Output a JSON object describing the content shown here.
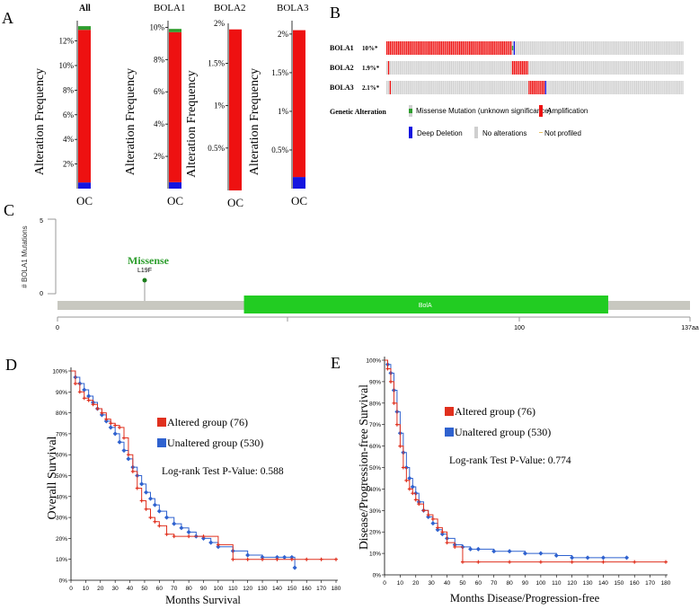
{
  "panels": {
    "A": "A",
    "B": "B",
    "C": "C",
    "D": "D",
    "E": "E"
  },
  "colors": {
    "amplification": "#ee1111",
    "deep_deletion": "#1414e0",
    "missense": "#2e9e2e",
    "no_alteration": "#cfcfcf",
    "altered": "#e0301e",
    "unaltered": "#2f62cf",
    "domain": "#22cc22",
    "backbone": "#c8c8c0"
  },
  "chart_data": [
    {
      "id": "A",
      "type": "bar",
      "ylabel": "Alteration Frequency",
      "charts": [
        {
          "title": "All",
          "category": "OC",
          "ylim": [
            0,
            13.5
          ],
          "ticks": [
            2,
            4,
            6,
            8,
            10,
            12
          ],
          "tick_labels": [
            "2%",
            "4%",
            "6%",
            "8%",
            "10%",
            "12%"
          ],
          "segments": [
            {
              "name": "Deep Deletion",
              "value": 0.5
            },
            {
              "name": "Amplification",
              "value": 12.4
            },
            {
              "name": "Missense Mutation",
              "value": 0.3
            }
          ]
        },
        {
          "title": "BOLA1",
          "category": "OC",
          "ylim": [
            0,
            10.3
          ],
          "ticks": [
            2,
            4,
            6,
            8,
            10
          ],
          "tick_labels": [
            "2%",
            "4%",
            "6%",
            "8%",
            "10%"
          ],
          "segments": [
            {
              "name": "Deep Deletion",
              "value": 0.4
            },
            {
              "name": "Amplification",
              "value": 9.3
            },
            {
              "name": "Missense Mutation",
              "value": 0.2
            }
          ]
        },
        {
          "title": "BOLA2",
          "category": "OC",
          "ylim": [
            0,
            1.95
          ],
          "ticks": [
            0.5,
            1,
            1.5
          ],
          "tick_labels": [
            "0.5%",
            "1%",
            "1.5%"
          ],
          "top_label": "2%",
          "segments": [
            {
              "name": "Amplification",
              "value": 1.9
            }
          ]
        },
        {
          "title": "BOLA3",
          "category": "OC",
          "ylim": [
            0,
            2.15
          ],
          "ticks": [
            0.5,
            1,
            1.5,
            2
          ],
          "tick_labels": [
            "0.5%",
            "1%",
            "1.5%",
            "2%"
          ],
          "segments": [
            {
              "name": "Deep Deletion",
              "value": 0.15
            },
            {
              "name": "Amplification",
              "value": 1.9
            }
          ]
        }
      ]
    },
    {
      "id": "B",
      "type": "oncoprint",
      "n_samples": 180,
      "rows": [
        {
          "gene": "BOLA1",
          "pct": "10%*",
          "amp": [
            [
              0,
              76
            ]
          ],
          "del": [
            [
              77,
              78
            ]
          ],
          "mut": [
            [
              76,
              77
            ]
          ]
        },
        {
          "gene": "BOLA2",
          "pct": "1.9%*",
          "amp": [
            [
              1,
              2
            ],
            [
              76,
              86
            ]
          ],
          "del": [],
          "mut": []
        },
        {
          "gene": "BOLA3",
          "pct": "2.1%*",
          "amp": [
            [
              2,
              3
            ],
            [
              86,
              96
            ]
          ],
          "del": [
            [
              96,
              97
            ]
          ],
          "mut": []
        }
      ],
      "legend_title": "Genetic Alteration",
      "legend": [
        {
          "key": "missense",
          "label": "Missense Mutation (unknown significance)"
        },
        {
          "key": "amplification",
          "label": "Amplification"
        },
        {
          "key": "deep_deletion",
          "label": "Deep Deletion"
        },
        {
          "key": "no_alteration",
          "label": "No alterations"
        },
        {
          "key": "not_profiled",
          "label": "Not profiled"
        }
      ]
    },
    {
      "id": "C",
      "type": "lollipop",
      "ylabel": "# BOLA1 Mutations",
      "ylim": [
        0,
        5
      ],
      "y_ticks": [
        "5",
        "0"
      ],
      "protein_length": 137,
      "x_ticks": [
        "0",
        "100",
        "137aa"
      ],
      "x_tick_values": [
        0,
        100,
        137
      ],
      "domain": {
        "name": "BolA",
        "start": 40,
        "end": 115
      },
      "mutations": [
        {
          "pos": 19,
          "count": 1,
          "label": "L19F",
          "type": "Missense"
        }
      ]
    },
    {
      "id": "D",
      "type": "line",
      "xlabel": "Months Survival",
      "ylabel": "Overall Survival",
      "xlim": [
        0,
        180
      ],
      "ylim": [
        0,
        100
      ],
      "x_ticks": [
        "0",
        "10",
        "20",
        "30",
        "40",
        "50",
        "60",
        "70",
        "80",
        "90",
        "100",
        "110",
        "120",
        "130",
        "140",
        "150",
        "160",
        "170",
        "180"
      ],
      "y_ticks": [
        "0%",
        "10%",
        "20%",
        "30%",
        "40%",
        "50%",
        "60%",
        "70%",
        "80%",
        "90%",
        "100%"
      ],
      "legend": [
        "Altered group (76)",
        "Unaltered group (530)"
      ],
      "annotation": "Log-rank Test P-Value:  0.588",
      "series": [
        {
          "name": "Altered group (76)",
          "x": [
            0,
            3,
            6,
            9,
            12,
            15,
            18,
            21,
            24,
            27,
            30,
            33,
            36,
            39,
            42,
            45,
            48,
            51,
            54,
            57,
            60,
            65,
            70,
            80,
            90,
            100,
            110,
            120,
            130,
            140,
            150,
            160,
            170,
            180
          ],
          "y": [
            100,
            94,
            90,
            87,
            86,
            84,
            82,
            80,
            77,
            75,
            74,
            73,
            68,
            60,
            52,
            44,
            38,
            34,
            30,
            28,
            26,
            22,
            21,
            21,
            21,
            17,
            10,
            10,
            10,
            10,
            10,
            10,
            10,
            10
          ]
        },
        {
          "name": "Unaltered group (530)",
          "x": [
            0,
            3,
            6,
            9,
            12,
            15,
            18,
            21,
            24,
            27,
            30,
            33,
            36,
            39,
            42,
            45,
            48,
            51,
            54,
            57,
            60,
            65,
            70,
            75,
            80,
            85,
            90,
            95,
            100,
            110,
            120,
            130,
            140,
            145,
            150,
            152
          ],
          "y": [
            100,
            97,
            94,
            91,
            88,
            85,
            82,
            79,
            76,
            73,
            70,
            66,
            62,
            58,
            54,
            50,
            46,
            42,
            39,
            36,
            33,
            30,
            27,
            25,
            23,
            21,
            20,
            18,
            16,
            14,
            12,
            11,
            11,
            11,
            11,
            6
          ]
        }
      ]
    },
    {
      "id": "E",
      "type": "line",
      "xlabel": "Months Disease/Progression-free",
      "ylabel": "Disease/Progression-free Survival",
      "xlim": [
        0,
        180
      ],
      "ylim": [
        0,
        100
      ],
      "x_ticks": [
        "0",
        "10",
        "20",
        "30",
        "40",
        "50",
        "60",
        "70",
        "80",
        "90",
        "100",
        "110",
        "120",
        "130",
        "140",
        "150",
        "160",
        "170",
        "180"
      ],
      "y_ticks": [
        "0%",
        "10%",
        "20%",
        "30%",
        "40%",
        "50%",
        "60%",
        "70%",
        "80%",
        "90%",
        "100%"
      ],
      "legend": [
        "Altered group (76)",
        "Unaltered group (530)"
      ],
      "annotation": "Log-rank Test P-Value:  0.774",
      "series": [
        {
          "name": "Altered group (76)",
          "x": [
            0,
            2,
            4,
            6,
            8,
            10,
            12,
            14,
            16,
            18,
            20,
            22,
            25,
            28,
            31,
            34,
            37,
            40,
            45,
            50,
            60,
            80,
            100,
            120,
            140,
            160,
            180
          ],
          "y": [
            100,
            96,
            90,
            80,
            70,
            60,
            50,
            44,
            40,
            38,
            35,
            33,
            30,
            28,
            26,
            22,
            20,
            15,
            13,
            6,
            6,
            6,
            6,
            6,
            6,
            6,
            6
          ]
        },
        {
          "name": "Unaltered group (530)",
          "x": [
            0,
            2,
            4,
            6,
            8,
            10,
            12,
            14,
            16,
            18,
            20,
            22,
            25,
            28,
            31,
            34,
            37,
            40,
            45,
            50,
            55,
            60,
            70,
            80,
            90,
            100,
            110,
            120,
            130,
            140,
            155
          ],
          "y": [
            100,
            98,
            94,
            86,
            76,
            66,
            57,
            50,
            45,
            41,
            38,
            34,
            30,
            27,
            24,
            21,
            19,
            17,
            14,
            13,
            12,
            12,
            11,
            11,
            10,
            10,
            9,
            8,
            8,
            8,
            8
          ]
        }
      ]
    }
  ]
}
